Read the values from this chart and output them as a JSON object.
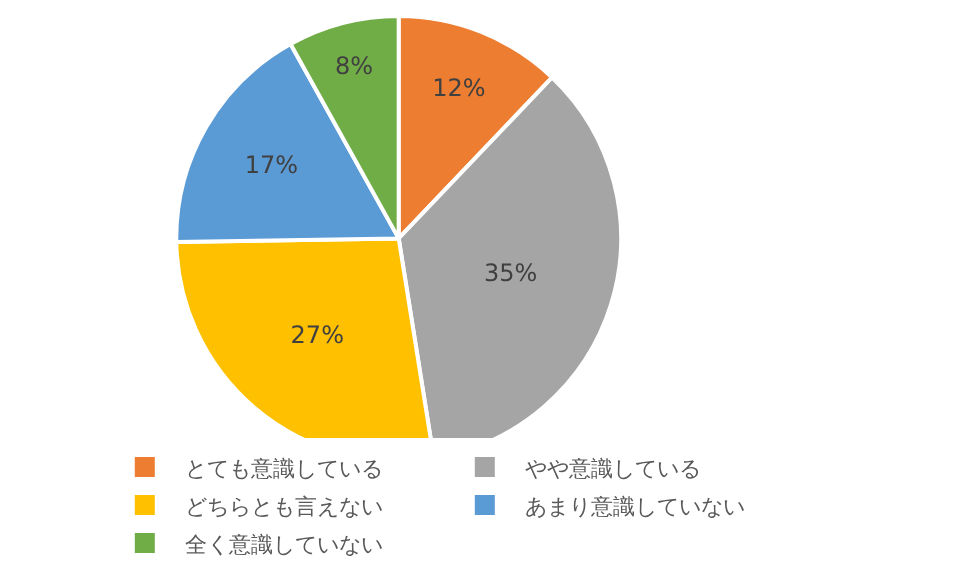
{
  "chart_data": {
    "type": "pie",
    "categories": [
      "とても意識している",
      "やや意識している",
      "どちらとも言えない",
      "あまり意識していない",
      "全く意識していない"
    ],
    "values": [
      12,
      35,
      27,
      17,
      8
    ],
    "value_labels": [
      "12%",
      "35%",
      "27%",
      "17%",
      "8%"
    ],
    "colors": [
      "#ed7d31",
      "#a5a5a5",
      "#ffc000",
      "#5b9bd5",
      "#70ad47"
    ],
    "legend": "bottom"
  }
}
